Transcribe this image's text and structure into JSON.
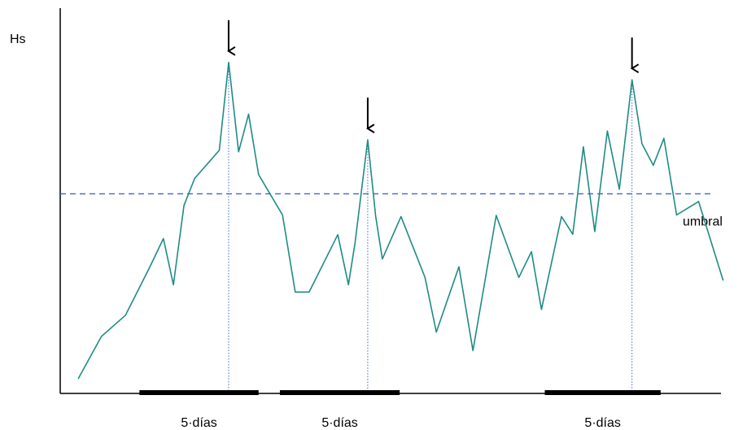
{
  "chart_data": {
    "type": "line",
    "ylabel": "Hs",
    "xlabel": "",
    "title": "",
    "grid": false,
    "legend": "none",
    "colors": {
      "series": "#1e8c84",
      "threshold": "#3a64d8",
      "peak_marker": "#3a64d8",
      "window": "#000000",
      "arrow": "#000000",
      "axis": "#000000"
    },
    "xlim": [
      0,
      100
    ],
    "ylim": [
      0,
      100
    ],
    "threshold": {
      "label": "umbral",
      "value": 51.8
    },
    "series": [
      {
        "x": [
          2.7,
          6.2,
          9.8,
          13.4,
          15.5,
          17.0,
          18.6,
          20.2,
          23.9,
          25.3,
          26.8,
          28.3,
          29.8,
          33.4,
          35.3,
          37.4,
          41.7,
          43.3,
          44.3,
          46.2,
          47.4,
          48.4,
          51.2,
          54.8,
          56.5,
          59.9,
          62.0,
          65.5,
          68.9,
          70.8,
          72.3,
          75.3,
          77.0,
          78.6,
          80.3,
          82.2,
          84.0,
          85.9,
          87.4,
          89.1,
          90.7,
          92.6,
          95.9,
          99.6
        ],
        "y": [
          3.8,
          14.8,
          20.3,
          32.6,
          40.2,
          28.2,
          48.8,
          55.8,
          63.1,
          85.9,
          62.7,
          72.5,
          56.8,
          46.3,
          26.3,
          26.3,
          41.2,
          28.2,
          39.2,
          65.8,
          45.9,
          34.9,
          45.9,
          30.1,
          15.9,
          32.9,
          11.1,
          46.2,
          30.1,
          36.8,
          21.8,
          45.9,
          41.3,
          64.0,
          42.0,
          68.1,
          53.0,
          81.4,
          64.8,
          59.2,
          66.2,
          46.3,
          49.8,
          29.3
        ]
      }
    ],
    "peaks": [
      {
        "x": 25.3,
        "y": 85.9
      },
      {
        "x": 46.2,
        "y": 65.8
      },
      {
        "x": 85.9,
        "y": 81.4
      }
    ],
    "windows": [
      {
        "label": "5·días",
        "x_start": 11.9,
        "x_end": 29.8
      },
      {
        "label": "5·días",
        "x_start": 33.0,
        "x_end": 51.0
      },
      {
        "label": "5·días",
        "x_start": 72.8,
        "x_end": 90.2
      }
    ]
  }
}
